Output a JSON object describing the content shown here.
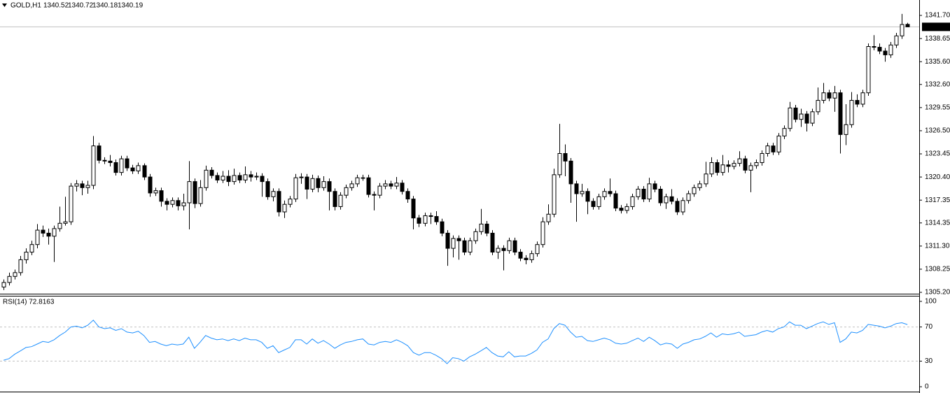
{
  "chart_data": [
    {
      "type": "candlestick",
      "title": "GOLD,H1",
      "ohlc_labels": [
        "1340.52",
        "1340.72",
        "1340.18",
        "1340.19"
      ],
      "bull_color": "#ffffff",
      "bear_color": "#000000",
      "last_price": {
        "value": 1340.19,
        "label": "1340.19"
      },
      "ylim": [
        1305.02,
        1343.73
      ],
      "yticks": [
        {
          "value": 1341.7,
          "label": "1341.70"
        },
        {
          "value": 1338.65,
          "label": "1338.65"
        },
        {
          "value": 1335.6,
          "label": "1335.60"
        },
        {
          "value": 1332.6,
          "label": "1332.60"
        },
        {
          "value": 1329.55,
          "label": "1329.55"
        },
        {
          "value": 1326.5,
          "label": "1326.50"
        },
        {
          "value": 1323.45,
          "label": "1323.45"
        },
        {
          "value": 1320.4,
          "label": "1320.40"
        },
        {
          "value": 1317.35,
          "label": "1317.35"
        },
        {
          "value": 1314.35,
          "label": "1314.35"
        },
        {
          "value": 1311.3,
          "label": "1311.30"
        },
        {
          "value": 1308.25,
          "label": "1308.25"
        },
        {
          "value": 1305.2,
          "label": "1305.20"
        }
      ],
      "open": [
        1305.9,
        1306.5,
        1307.3,
        1307.8,
        1309.5,
        1310.5,
        1311.5,
        1313.4,
        1313.0,
        1312.6,
        1313.6,
        1314.3,
        1314.5,
        1319.2,
        1319.5,
        1319.0,
        1319.3,
        1324.5,
        1322.6,
        1322.5,
        1322.3,
        1321.0,
        1322.8,
        1321.6,
        1321.2,
        1321.9,
        1320.4,
        1318.3,
        1318.6,
        1317.2,
        1316.8,
        1317.3,
        1316.6,
        1317.0,
        1319.8,
        1316.9,
        1319.0,
        1321.3,
        1320.6,
        1320.0,
        1320.5,
        1319.8,
        1320.6,
        1320.0,
        1320.7,
        1320.4,
        1320.5,
        1319.8,
        1317.8,
        1318.5,
        1315.8,
        1316.8,
        1317.5,
        1320.3,
        1320.4,
        1318.8,
        1320.2,
        1319.0,
        1319.8,
        1318.5,
        1316.5,
        1318.0,
        1319.0,
        1319.5,
        1320.3,
        1320.3,
        1318.1,
        1318.0,
        1319.2,
        1319.5,
        1319.2,
        1319.6,
        1318.5,
        1317.5,
        1315.0,
        1314.3,
        1315.3,
        1315.2,
        1314.5,
        1313.0,
        1311.0,
        1312.3,
        1312.0,
        1310.5,
        1312.0,
        1313.2,
        1314.2,
        1313.0,
        1310.5,
        1311.0,
        1310.7,
        1312.0,
        1310.5,
        1309.7,
        1309.5,
        1310.3,
        1311.5,
        1314.5,
        1315.5,
        1320.7,
        1323.5,
        1322.5,
        1319.5,
        1318.2,
        1318.5,
        1317.2,
        1316.5,
        1317.8,
        1318.5,
        1318.2,
        1316.3,
        1316.0,
        1316.5,
        1317.8,
        1318.8,
        1317.5,
        1319.5,
        1318.8,
        1317.0,
        1317.8,
        1317.2,
        1315.8,
        1317.3,
        1318.2,
        1319.0,
        1319.5,
        1320.8,
        1322.3,
        1321.0,
        1322.0,
        1321.8,
        1322.2,
        1322.8,
        1321.3,
        1321.9,
        1322.3,
        1323.5,
        1324.5,
        1323.7,
        1325.8,
        1326.8,
        1329.5,
        1328.0,
        1328.7,
        1327.5,
        1329.0,
        1330.5,
        1331.5,
        1330.8,
        1331.5,
        1326.0,
        1327.3,
        1330.5,
        1330.0,
        1331.5,
        1337.6,
        1337.5,
        1337.0,
        1336.5,
        1337.8,
        1339.0,
        1340.52
      ],
      "high": [
        1306.9,
        1307.8,
        1308.2,
        1310.0,
        1311.0,
        1312.0,
        1314.2,
        1314.0,
        1313.6,
        1314.0,
        1316.5,
        1317.8,
        1319.6,
        1320.0,
        1319.9,
        1319.9,
        1325.8,
        1324.9,
        1323.0,
        1323.3,
        1322.7,
        1323.2,
        1323.2,
        1322.0,
        1322.3,
        1322.2,
        1320.8,
        1319.0,
        1319.0,
        1317.6,
        1317.7,
        1317.7,
        1318.2,
        1322.5,
        1320.2,
        1320.0,
        1321.9,
        1321.7,
        1321.0,
        1321.2,
        1321.3,
        1321.5,
        1321.0,
        1321.8,
        1321.2,
        1321.0,
        1320.9,
        1320.2,
        1318.9,
        1318.9,
        1317.3,
        1317.9,
        1320.8,
        1320.9,
        1320.8,
        1320.7,
        1320.6,
        1320.5,
        1320.2,
        1318.9,
        1318.4,
        1319.4,
        1319.9,
        1320.7,
        1320.7,
        1320.7,
        1318.5,
        1319.6,
        1320.0,
        1319.9,
        1320.4,
        1320.0,
        1318.9,
        1317.9,
        1315.4,
        1315.7,
        1315.7,
        1315.9,
        1314.9,
        1313.4,
        1312.7,
        1312.7,
        1312.4,
        1312.4,
        1313.6,
        1316.2,
        1314.6,
        1313.4,
        1311.4,
        1311.4,
        1312.4,
        1312.4,
        1310.9,
        1310.1,
        1310.7,
        1311.9,
        1315.1,
        1316.8,
        1321.5,
        1327.4,
        1324.7,
        1322.9,
        1319.9,
        1319.5,
        1318.9,
        1317.6,
        1318.2,
        1318.9,
        1320.2,
        1318.6,
        1316.7,
        1316.9,
        1318.2,
        1319.2,
        1319.2,
        1320.3,
        1319.9,
        1319.2,
        1318.2,
        1318.8,
        1317.6,
        1317.7,
        1318.6,
        1319.4,
        1319.9,
        1322.4,
        1323.0,
        1322.7,
        1323.3,
        1322.6,
        1322.6,
        1323.8,
        1323.2,
        1322.3,
        1322.7,
        1323.9,
        1324.9,
        1324.9,
        1326.2,
        1327.2,
        1330.3,
        1329.9,
        1329.4,
        1329.1,
        1329.4,
        1332.2,
        1332.8,
        1331.9,
        1332.4,
        1331.9,
        1330.0,
        1331.6,
        1331.3,
        1331.9,
        1338.0,
        1339.1,
        1338.0,
        1337.4,
        1338.2,
        1339.4,
        1341.9,
        1340.72
      ],
      "low": [
        1305.5,
        1306.1,
        1306.9,
        1307.4,
        1309.0,
        1310.1,
        1311.0,
        1312.5,
        1311.5,
        1309.2,
        1313.2,
        1314.0,
        1314.1,
        1318.5,
        1318.0,
        1318.2,
        1318.8,
        1322.2,
        1322.1,
        1321.8,
        1320.6,
        1320.6,
        1321.2,
        1320.8,
        1320.8,
        1320.0,
        1317.8,
        1317.9,
        1316.5,
        1316.0,
        1316.4,
        1316.0,
        1316.0,
        1313.5,
        1316.3,
        1316.5,
        1318.6,
        1320.2,
        1319.6,
        1319.6,
        1319.2,
        1319.4,
        1319.6,
        1319.6,
        1319.8,
        1320.0,
        1317.8,
        1317.4,
        1317.2,
        1315.2,
        1315.0,
        1316.4,
        1317.1,
        1319.5,
        1317.5,
        1318.4,
        1318.4,
        1318.6,
        1316.0,
        1316.0,
        1316.1,
        1317.6,
        1318.6,
        1319.1,
        1319.9,
        1317.7,
        1316.0,
        1317.6,
        1318.8,
        1318.8,
        1318.8,
        1318.1,
        1317.0,
        1313.5,
        1313.8,
        1313.9,
        1314.2,
        1314.1,
        1312.6,
        1308.7,
        1309.8,
        1309.5,
        1310.1,
        1310.1,
        1311.6,
        1312.8,
        1312.6,
        1310.1,
        1309.6,
        1308.1,
        1310.3,
        1310.1,
        1309.3,
        1308.9,
        1309.1,
        1309.9,
        1311.1,
        1314.1,
        1315.1,
        1320.3,
        1320.5,
        1317.0,
        1314.5,
        1317.8,
        1315.5,
        1316.1,
        1316.1,
        1317.4,
        1317.8,
        1315.9,
        1315.6,
        1315.6,
        1316.1,
        1317.4,
        1317.1,
        1317.1,
        1318.4,
        1316.6,
        1316.2,
        1316.8,
        1315.4,
        1315.4,
        1316.9,
        1317.8,
        1318.6,
        1319.1,
        1320.4,
        1320.6,
        1320.6,
        1321.0,
        1321.4,
        1321.8,
        1320.9,
        1318.4,
        1321.5,
        1321.9,
        1323.1,
        1323.3,
        1323.3,
        1325.4,
        1326.4,
        1327.6,
        1327.0,
        1326.4,
        1327.1,
        1328.6,
        1330.1,
        1330.4,
        1329.0,
        1323.5,
        1324.6,
        1326.9,
        1329.6,
        1329.6,
        1331.1,
        1337.1,
        1336.6,
        1335.6,
        1336.1,
        1337.4,
        1338.6,
        1340.18
      ],
      "close": [
        1306.5,
        1307.3,
        1307.8,
        1309.5,
        1310.5,
        1311.5,
        1313.4,
        1313.0,
        1312.6,
        1313.6,
        1314.3,
        1314.5,
        1319.2,
        1319.5,
        1319.0,
        1319.3,
        1324.5,
        1322.6,
        1322.5,
        1322.3,
        1321.0,
        1322.8,
        1321.6,
        1321.2,
        1321.9,
        1320.4,
        1318.3,
        1318.6,
        1317.2,
        1316.8,
        1317.3,
        1316.6,
        1317.0,
        1319.8,
        1316.9,
        1319.0,
        1321.3,
        1320.6,
        1320.0,
        1320.5,
        1319.8,
        1320.6,
        1320.0,
        1320.7,
        1320.4,
        1320.5,
        1319.8,
        1317.8,
        1318.5,
        1315.8,
        1316.8,
        1317.5,
        1320.3,
        1320.4,
        1318.8,
        1320.2,
        1319.0,
        1319.8,
        1318.5,
        1316.5,
        1318.0,
        1319.0,
        1319.5,
        1320.3,
        1320.3,
        1318.1,
        1318.0,
        1319.2,
        1319.5,
        1319.2,
        1319.6,
        1318.5,
        1317.5,
        1315.0,
        1314.3,
        1315.3,
        1315.2,
        1314.5,
        1313.0,
        1311.0,
        1312.3,
        1312.0,
        1310.5,
        1312.0,
        1313.2,
        1314.2,
        1313.0,
        1310.5,
        1311.0,
        1310.7,
        1312.0,
        1310.5,
        1309.7,
        1309.5,
        1310.3,
        1311.5,
        1314.5,
        1315.5,
        1320.7,
        1323.5,
        1322.5,
        1319.5,
        1318.2,
        1318.5,
        1317.2,
        1316.5,
        1317.8,
        1318.5,
        1318.2,
        1316.3,
        1316.0,
        1316.5,
        1317.8,
        1318.8,
        1317.5,
        1319.5,
        1318.8,
        1317.0,
        1317.8,
        1317.2,
        1315.8,
        1317.3,
        1318.2,
        1319.0,
        1319.5,
        1320.8,
        1322.3,
        1321.0,
        1322.0,
        1321.8,
        1322.2,
        1322.8,
        1321.3,
        1321.9,
        1322.3,
        1323.5,
        1324.5,
        1323.7,
        1325.8,
        1326.8,
        1329.5,
        1328.0,
        1328.7,
        1327.5,
        1329.0,
        1330.5,
        1331.5,
        1330.8,
        1331.5,
        1326.0,
        1327.3,
        1330.5,
        1330.0,
        1331.5,
        1337.6,
        1337.5,
        1337.0,
        1336.5,
        1337.8,
        1339.0,
        1340.5,
        1340.19
      ]
    },
    {
      "type": "line",
      "title": "RSI(14) 72.8163",
      "color": "#1e90ff",
      "levels": [
        70,
        30
      ],
      "ylim": [
        -5.7,
        105.7
      ],
      "yticks": [
        100,
        70,
        30,
        0
      ],
      "values": [
        31,
        33,
        38,
        42,
        46,
        47,
        50,
        53,
        52,
        55,
        60,
        64,
        70,
        71,
        69,
        72,
        78,
        70,
        68,
        69,
        66,
        68,
        64,
        63,
        65,
        60,
        52,
        53,
        50,
        48,
        50,
        49,
        50,
        58,
        45,
        52,
        60,
        57,
        55,
        56,
        54,
        56,
        54,
        57,
        55,
        55,
        52,
        45,
        48,
        40,
        43,
        46,
        55,
        55,
        50,
        56,
        51,
        54,
        50,
        45,
        49,
        52,
        53,
        55,
        56,
        50,
        49,
        52,
        53,
        52,
        55,
        52,
        48,
        40,
        37,
        40,
        40,
        37,
        33,
        27,
        34,
        33,
        30,
        35,
        38,
        42,
        46,
        40,
        36,
        35,
        41,
        35,
        36,
        36,
        39,
        43,
        52,
        56,
        68,
        74,
        72,
        64,
        58,
        59,
        54,
        53,
        55,
        57,
        55,
        51,
        50,
        51,
        54,
        57,
        53,
        58,
        54,
        49,
        51,
        50,
        45,
        50,
        52,
        55,
        56,
        59,
        63,
        58,
        62,
        61,
        62,
        64,
        59,
        60,
        61,
        64,
        66,
        64,
        68,
        70,
        76,
        72,
        72,
        68,
        71,
        74,
        76,
        73,
        75,
        52,
        56,
        64,
        63,
        66,
        73,
        72,
        71,
        69,
        71,
        74,
        75,
        72.8163
      ]
    }
  ]
}
